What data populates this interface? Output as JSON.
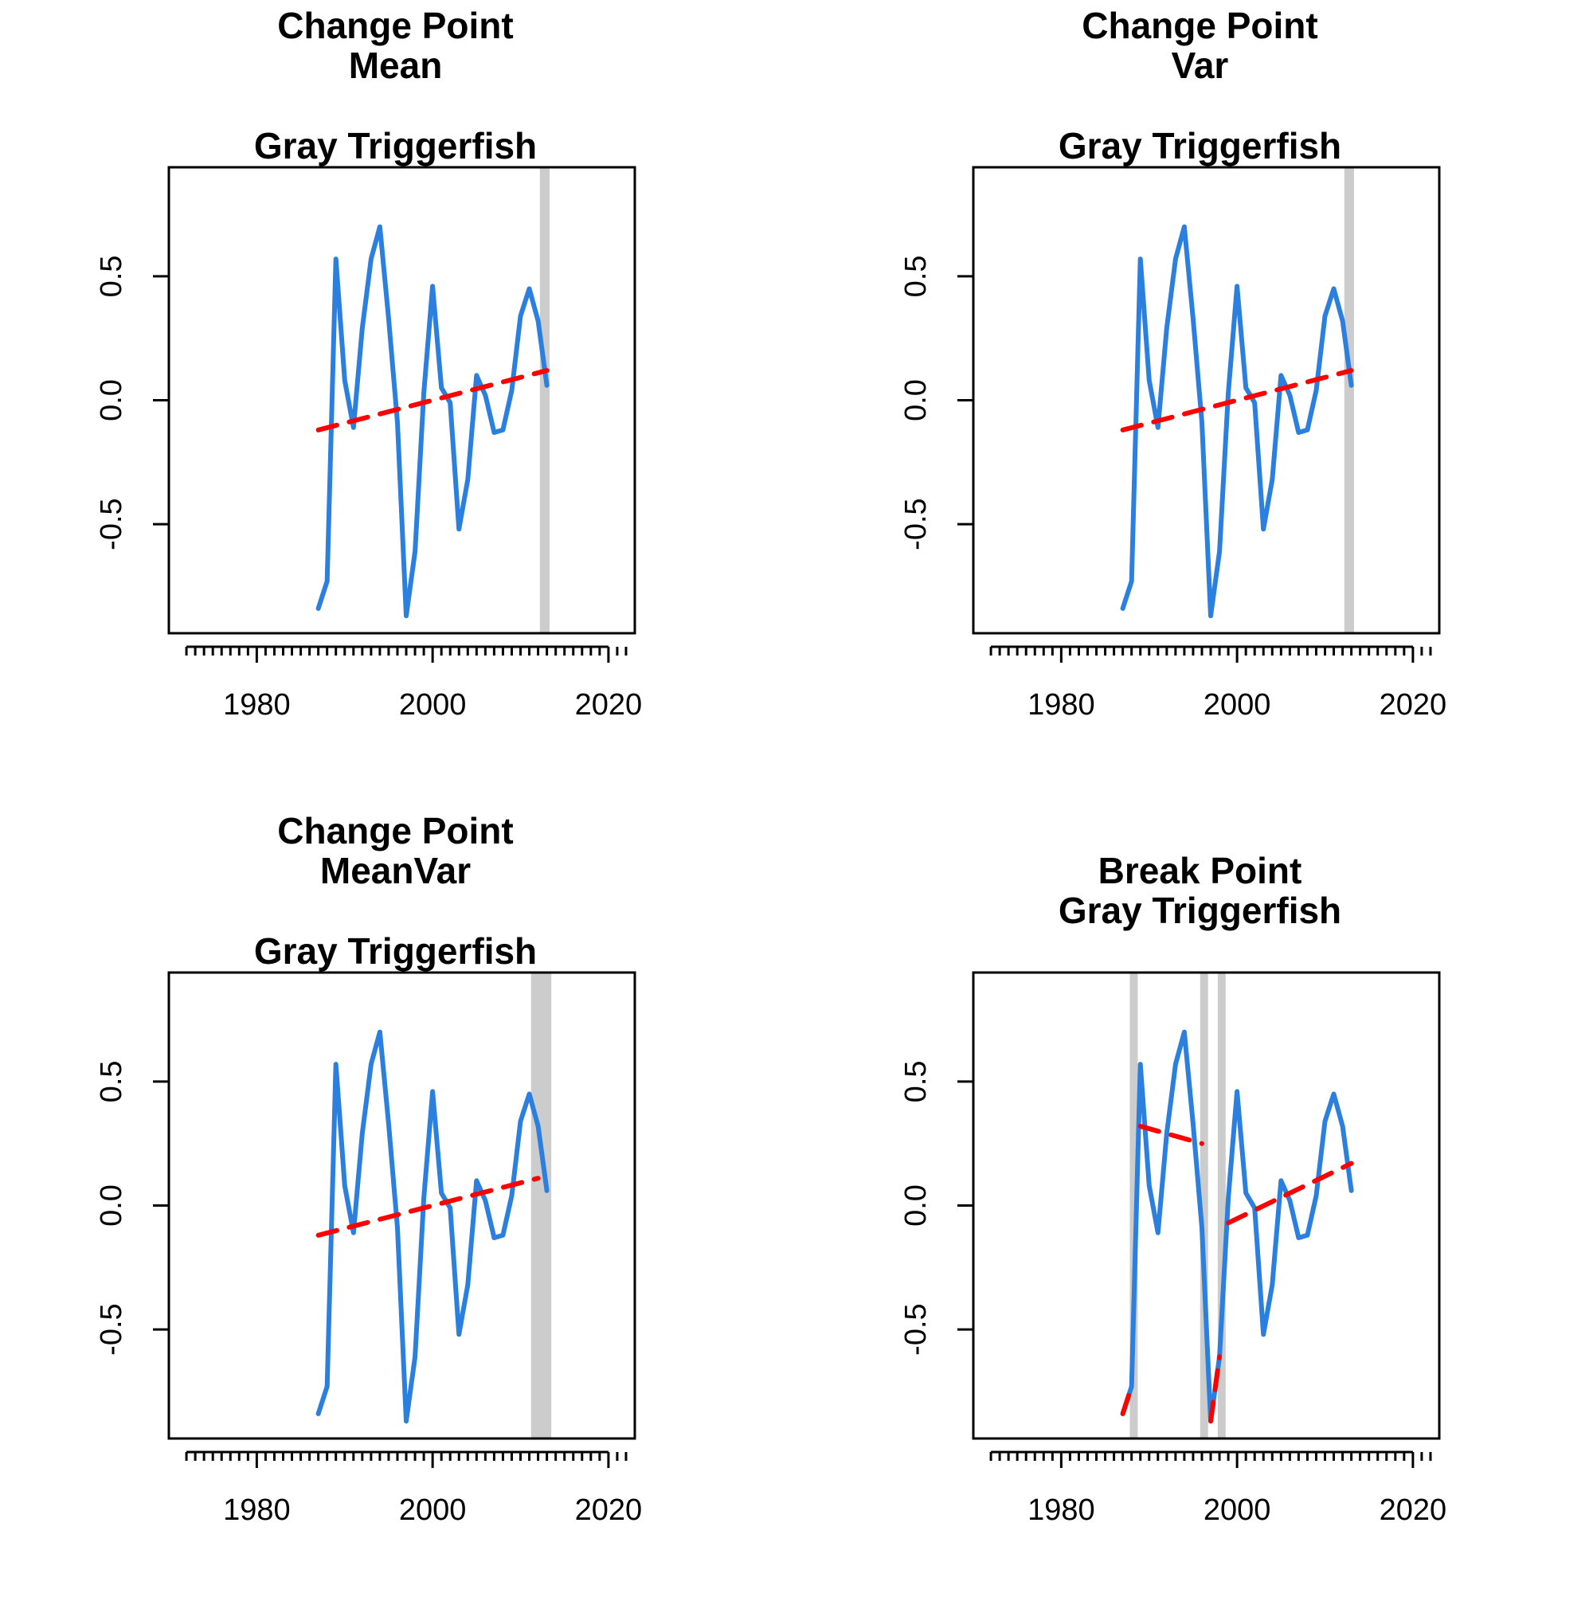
{
  "colors": {
    "series": "#2a7fdf",
    "trend": "#ff0000",
    "change_band": "#cccccc",
    "axis": "#000000"
  },
  "chart_data": [
    {
      "type": "line",
      "title_lines": [
        "Change Point",
        "Mean",
        "",
        "Gray Triggerfish"
      ],
      "x": [
        1987,
        1988,
        1989,
        1990,
        1991,
        1992,
        1993,
        1994,
        1995,
        1996,
        1997,
        1998,
        1999,
        2000,
        2001,
        2002,
        2003,
        2004,
        2005,
        2006,
        2007,
        2008,
        2009,
        2010,
        2011,
        2012,
        2013
      ],
      "series": [
        {
          "values": [
            -0.84,
            -0.73,
            0.57,
            0.08,
            -0.11,
            0.29,
            0.57,
            0.7,
            0.33,
            -0.09,
            -0.87,
            -0.61,
            0.03,
            0.46,
            0.05,
            -0.01,
            -0.52,
            -0.32,
            0.1,
            0.02,
            -0.13,
            -0.12,
            0.04,
            0.34,
            0.45,
            0.32,
            0.06
          ]
        }
      ],
      "trend_segments": [
        {
          "x": [
            1987,
            2013
          ],
          "y": [
            -0.12,
            0.12
          ]
        }
      ],
      "change_bands": [
        {
          "from": 2012.2,
          "to": 2013.3
        }
      ],
      "xlim": [
        1970,
        2023
      ],
      "ylim": [
        -0.94,
        0.94
      ],
      "x_ticks": [
        1980,
        2000,
        2020
      ],
      "y_ticks": [
        "-0.5",
        "0.0",
        "0.5"
      ],
      "grid": false
    },
    {
      "type": "line",
      "title_lines": [
        "Change Point",
        "Var",
        "",
        "Gray Triggerfish"
      ],
      "x": [
        1987,
        1988,
        1989,
        1990,
        1991,
        1992,
        1993,
        1994,
        1995,
        1996,
        1997,
        1998,
        1999,
        2000,
        2001,
        2002,
        2003,
        2004,
        2005,
        2006,
        2007,
        2008,
        2009,
        2010,
        2011,
        2012,
        2013
      ],
      "series": [
        {
          "values": [
            -0.84,
            -0.73,
            0.57,
            0.08,
            -0.11,
            0.29,
            0.57,
            0.7,
            0.33,
            -0.09,
            -0.87,
            -0.61,
            0.03,
            0.46,
            0.05,
            -0.01,
            -0.52,
            -0.32,
            0.1,
            0.02,
            -0.13,
            -0.12,
            0.04,
            0.34,
            0.45,
            0.32,
            0.06
          ]
        }
      ],
      "trend_segments": [
        {
          "x": [
            1987,
            2013
          ],
          "y": [
            -0.12,
            0.12
          ]
        }
      ],
      "change_bands": [
        {
          "from": 2012.2,
          "to": 2013.3
        }
      ],
      "xlim": [
        1970,
        2023
      ],
      "ylim": [
        -0.94,
        0.94
      ],
      "x_ticks": [
        1980,
        2000,
        2020
      ],
      "y_ticks": [
        "-0.5",
        "0.0",
        "0.5"
      ],
      "grid": false
    },
    {
      "type": "line",
      "title_lines": [
        "Change Point",
        "MeanVar",
        "",
        "Gray Triggerfish"
      ],
      "x": [
        1987,
        1988,
        1989,
        1990,
        1991,
        1992,
        1993,
        1994,
        1995,
        1996,
        1997,
        1998,
        1999,
        2000,
        2001,
        2002,
        2003,
        2004,
        2005,
        2006,
        2007,
        2008,
        2009,
        2010,
        2011,
        2012,
        2013
      ],
      "series": [
        {
          "values": [
            -0.84,
            -0.73,
            0.57,
            0.08,
            -0.11,
            0.29,
            0.57,
            0.7,
            0.33,
            -0.09,
            -0.87,
            -0.61,
            0.03,
            0.46,
            0.05,
            -0.01,
            -0.52,
            -0.32,
            0.1,
            0.02,
            -0.13,
            -0.12,
            0.04,
            0.34,
            0.45,
            0.32,
            0.06
          ]
        }
      ],
      "trend_segments": [
        {
          "x": [
            1987,
            2012
          ],
          "y": [
            -0.12,
            0.11
          ]
        }
      ],
      "change_bands": [
        {
          "from": 2011.2,
          "to": 2013.5
        }
      ],
      "xlim": [
        1970,
        2023
      ],
      "ylim": [
        -0.94,
        0.94
      ],
      "x_ticks": [
        1980,
        2000,
        2020
      ],
      "y_ticks": [
        "-0.5",
        "0.0",
        "0.5"
      ],
      "grid": false
    },
    {
      "type": "line",
      "title_lines": [
        "",
        "Break Point",
        "Gray Triggerfish",
        ""
      ],
      "x": [
        1987,
        1988,
        1989,
        1990,
        1991,
        1992,
        1993,
        1994,
        1995,
        1996,
        1997,
        1998,
        1999,
        2000,
        2001,
        2002,
        2003,
        2004,
        2005,
        2006,
        2007,
        2008,
        2009,
        2010,
        2011,
        2012,
        2013
      ],
      "series": [
        {
          "values": [
            -0.84,
            -0.73,
            0.57,
            0.08,
            -0.11,
            0.29,
            0.57,
            0.7,
            0.33,
            -0.09,
            -0.87,
            -0.61,
            0.03,
            0.46,
            0.05,
            -0.01,
            -0.52,
            -0.32,
            0.1,
            0.02,
            -0.13,
            -0.12,
            0.04,
            0.34,
            0.45,
            0.32,
            0.06
          ]
        }
      ],
      "trend_segments": [
        {
          "x": [
            1987,
            1988
          ],
          "y": [
            -0.84,
            -0.73
          ]
        },
        {
          "x": [
            1989,
            1996
          ],
          "y": [
            0.32,
            0.25
          ]
        },
        {
          "x": [
            1997,
            1998
          ],
          "y": [
            -0.87,
            -0.61
          ]
        },
        {
          "x": [
            1999,
            2013
          ],
          "y": [
            -0.07,
            0.17
          ]
        }
      ],
      "change_bands": [
        {
          "from": 1987.8,
          "to": 1988.7
        },
        {
          "from": 1995.8,
          "to": 1996.7
        },
        {
          "from": 1997.8,
          "to": 1998.7
        }
      ],
      "xlim": [
        1970,
        2023
      ],
      "ylim": [
        -0.94,
        0.94
      ],
      "x_ticks": [
        1980,
        2000,
        2020
      ],
      "y_ticks": [
        "-0.5",
        "0.0",
        "0.5"
      ],
      "grid": false
    }
  ]
}
